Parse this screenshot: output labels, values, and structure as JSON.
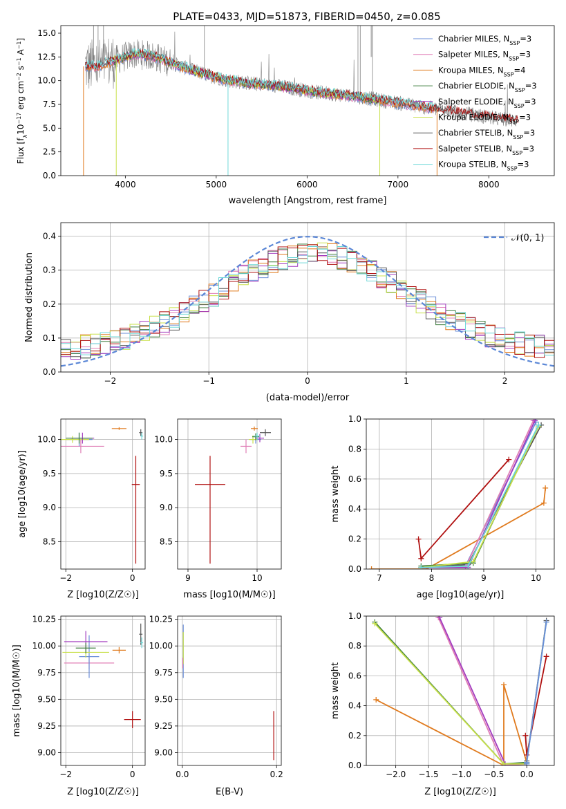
{
  "title": "PLATE=0433, MJD=51873, FIBERID=0450, z=0.085",
  "colors": {
    "Chabrier MILES": "#6a8ed8",
    "Salpeter MILES": "#e07fb6",
    "Kroupa MILES": "#e07b1f",
    "Chabrier ELODIE": "#3f7f3f",
    "Salpeter ELODIE": "#a23bbf",
    "Kroupa ELODIE": "#c8e04a",
    "Chabrier STELIB": "#555555",
    "Salpeter STELIB": "#b01010",
    "Kroupa STELIB": "#6fd8d8",
    "data": "#808080",
    "gaussian": "#5b87d6"
  },
  "chart_data": [
    {
      "type": "line",
      "panel": "spectrum",
      "title": "PLATE=0433, MJD=51873, FIBERID=0450, z=0.085",
      "xlabel": "wavelength [Angstrom, rest frame]",
      "ylabel": "Flux [f_λ 10^-17 erg cm^-2 s^-1 A^-1]",
      "xlim": [
        3290,
        8720
      ],
      "ylim": [
        0,
        15.8
      ],
      "xticks": [
        "4000",
        "5000",
        "6000",
        "7000",
        "8000"
      ],
      "yticks": [
        "0.0",
        "2.5",
        "5.0",
        "7.5",
        "10.0",
        "12.5",
        "15.0"
      ],
      "legend_position": "top-right",
      "legend": [
        {
          "name": "Chabrier MILES",
          "nssp": "3"
        },
        {
          "name": "Salpeter MILES",
          "nssp": "3"
        },
        {
          "name": "Kroupa MILES",
          "nssp": "4"
        },
        {
          "name": "Chabrier ELODIE",
          "nssp": "3"
        },
        {
          "name": "Salpeter ELODIE",
          "nssp": "3"
        },
        {
          "name": "Kroupa ELODIE",
          "nssp": "3"
        },
        {
          "name": "Chabrier STELIB",
          "nssp": "3"
        },
        {
          "name": "Salpeter STELIB",
          "nssp": "3"
        },
        {
          "name": "Kroupa STELIB",
          "nssp": "3"
        }
      ],
      "continuum": {
        "x": [
          3550,
          3700,
          3900,
          4100,
          4300,
          4500,
          4700,
          4900,
          5100,
          5300,
          5500,
          5700,
          5900,
          6100,
          6300,
          6500,
          6700,
          6900,
          7100,
          7300,
          7500,
          7700,
          7900,
          8100,
          8300
        ],
        "y": [
          11.5,
          11.5,
          12.2,
          12.8,
          12.6,
          11.9,
          11.2,
          10.6,
          10.1,
          9.8,
          9.6,
          9.4,
          9.1,
          8.8,
          8.6,
          8.4,
          8.1,
          7.8,
          7.5,
          7.2,
          6.9,
          6.6,
          6.3,
          6.0,
          5.8
        ]
      }
    },
    {
      "type": "line",
      "panel": "residual histogram",
      "xlabel": "(data-model)/error",
      "ylabel": "Normed distribution",
      "xlim": [
        -2.5,
        2.5
      ],
      "ylim": [
        0,
        0.44
      ],
      "xticks": [
        "−2",
        "−1",
        "0",
        "1",
        "2"
      ],
      "yticks": [
        "0.0",
        "0.1",
        "0.2",
        "0.3",
        "0.4"
      ],
      "legend_position": "top-right",
      "legend_label": "𝒩(0, 1)",
      "grid": true,
      "histogram_bins": [
        -2.5,
        2.5,
        0.1
      ]
    },
    {
      "type": "scatter",
      "panel": "age vs metallicity",
      "xlabel": "Z [log10(Z/Z☉)]",
      "ylabel": "age  [log10(age/yr)]",
      "xlim": [
        -2.15,
        0.38
      ],
      "ylim": [
        8.1,
        10.3
      ],
      "xticks": [
        "−2",
        "0"
      ],
      "yticks": [
        "8.5",
        "9.0",
        "9.5",
        "10.0"
      ],
      "grid": true,
      "points": [
        {
          "model": "Salpeter STELIB",
          "x": 0.1,
          "y": 9.34,
          "xerr": 0.12,
          "yerr": [
            1.16,
            0.42
          ]
        },
        {
          "model": "Kroupa MILES",
          "x": -0.4,
          "y": 10.16,
          "xerr": 0.22,
          "yerr": 0.02
        },
        {
          "model": "Salpeter MILES",
          "x": -1.55,
          "y": 9.9,
          "xerr": 0.7,
          "yerr": 0.1
        },
        {
          "model": "Chabrier MILES",
          "x": -1.6,
          "y": 10.0,
          "xerr": 0.4,
          "yerr": 0.1
        },
        {
          "model": "Kroupa ELODIE",
          "x": -1.8,
          "y": 10.0,
          "xerr": 0.5,
          "yerr": 0.05
        },
        {
          "model": "Salpeter ELODIE",
          "x": -1.5,
          "y": 10.02,
          "xerr": 0.35,
          "yerr": 0.08
        },
        {
          "model": "Chabrier ELODIE",
          "x": -1.6,
          "y": 10.02,
          "xerr": 0.4,
          "yerr": 0.08
        },
        {
          "model": "Chabrier STELIB",
          "x": 0.25,
          "y": 10.1,
          "xerr": 0.05,
          "yerr": 0.05
        },
        {
          "model": "Kroupa STELIB",
          "x": 0.28,
          "y": 10.05,
          "xerr": 0.04,
          "yerr": 0.05
        }
      ]
    },
    {
      "type": "scatter",
      "panel": "age vs mass",
      "xlabel": "mass [log10(M/M☉)]",
      "xlim": [
        8.85,
        10.35
      ],
      "ylim": [
        8.1,
        10.3
      ],
      "xticks": [
        "9",
        "10"
      ],
      "yticks": [
        "8.5",
        "9.0",
        "9.5",
        "10.0"
      ],
      "grid": true,
      "points": [
        {
          "model": "Salpeter STELIB",
          "x": 9.32,
          "y": 9.34,
          "xerr": 0.22,
          "yerr": [
            1.16,
            0.42
          ]
        },
        {
          "model": "Chabrier STELIB",
          "x": 10.12,
          "y": 10.1,
          "xerr": 0.08,
          "yerr": 0.05
        },
        {
          "model": "Kroupa MILES",
          "x": 9.96,
          "y": 10.16,
          "xerr": 0.05,
          "yerr": 0.03
        },
        {
          "model": "Salpeter MILES",
          "x": 9.84,
          "y": 9.9,
          "xerr": 0.08,
          "yerr": 0.1
        },
        {
          "model": "Chabrier MILES",
          "x": 9.98,
          "y": 10.0,
          "xerr": 0.08,
          "yerr": 0.06
        },
        {
          "model": "Kroupa ELODIE",
          "x": 9.94,
          "y": 10.0,
          "xerr": 0.06,
          "yerr": 0.06
        },
        {
          "model": "Salpeter ELODIE",
          "x": 10.04,
          "y": 10.02,
          "xerr": 0.06,
          "yerr": 0.06
        },
        {
          "model": "Chabrier ELODIE",
          "x": 9.98,
          "y": 10.04,
          "xerr": 0.05,
          "yerr": 0.05
        },
        {
          "model": "Kroupa STELIB",
          "x": 10.0,
          "y": 10.05,
          "xerr": 0.05,
          "yerr": 0.05
        }
      ]
    },
    {
      "type": "line",
      "panel": "mass weight vs age",
      "xlabel": "age  [log10(age/yr)]",
      "ylabel": "mass weight",
      "xlim": [
        6.75,
        10.35
      ],
      "ylim": [
        0,
        1.0
      ],
      "xticks": [
        "7",
        "8",
        "9",
        "10"
      ],
      "yticks": [
        "0.0",
        "0.2",
        "0.4",
        "0.6",
        "0.8",
        "1.0"
      ],
      "grid": true,
      "series": [
        {
          "model": "Kroupa MILES",
          "x": [
            6.85,
            7.9,
            10.15,
            10.18
          ],
          "y": [
            0.0,
            0.0,
            0.44,
            0.54
          ]
        },
        {
          "model": "Salpeter STELIB",
          "x": [
            7.75,
            7.8,
            9.48
          ],
          "y": [
            0.2,
            0.07,
            0.73
          ]
        },
        {
          "model": "Chabrier STELIB",
          "x": [
            7.8,
            8.7,
            10.1
          ],
          "y": [
            0.01,
            0.03,
            0.96
          ]
        },
        {
          "model": "Chabrier MILES",
          "x": [
            7.8,
            8.65,
            10.0
          ],
          "y": [
            0.01,
            0.02,
            0.98
          ]
        },
        {
          "model": "Salpeter MILES",
          "x": [
            7.8,
            8.65,
            9.95
          ],
          "y": [
            0.01,
            0.01,
            0.99
          ]
        },
        {
          "model": "Salpeter ELODIE",
          "x": [
            7.8,
            8.7,
            9.98
          ],
          "y": [
            0.01,
            0.01,
            0.99
          ]
        },
        {
          "model": "Chabrier ELODIE",
          "x": [
            7.8,
            8.8,
            10.05
          ],
          "y": [
            0.02,
            0.04,
            0.96
          ]
        },
        {
          "model": "Kroupa ELODIE",
          "x": [
            7.8,
            8.8,
            10.05
          ],
          "y": [
            0.01,
            0.05,
            0.95
          ]
        },
        {
          "model": "Kroupa STELIB",
          "x": [
            7.8,
            8.7,
            10.05
          ],
          "y": [
            0.01,
            0.02,
            0.96
          ]
        }
      ]
    },
    {
      "type": "scatter",
      "panel": "mass vs metallicity",
      "xlabel": "Z [log10(Z/Z☉)]",
      "ylabel": "mass [log10(M/M☉)]",
      "xlim": [
        -2.15,
        0.38
      ],
      "ylim": [
        8.88,
        10.28
      ],
      "xticks": [
        "−2",
        "0"
      ],
      "yticks": [
        "9.00",
        "9.25",
        "9.50",
        "9.75",
        "10.00",
        "10.25"
      ],
      "grid": true,
      "points": [
        {
          "model": "Salpeter STELIB",
          "x": 0.0,
          "y": 9.31,
          "xerr": 0.25,
          "yerr": 0.08
        },
        {
          "model": "Kroupa MILES",
          "x": -0.4,
          "y": 9.96,
          "xerr": 0.2,
          "yerr": 0.03
        },
        {
          "model": "Salpeter MILES",
          "x": -1.3,
          "y": 9.84,
          "xerr": 0.75,
          "yerr": 0.06
        },
        {
          "model": "Chabrier MILES",
          "x": -1.3,
          "y": 9.9,
          "xerr": 0.3,
          "yerr": 0.2
        },
        {
          "model": "Kroupa ELODIE",
          "x": -1.4,
          "y": 9.94,
          "xerr": 0.7,
          "yerr": 0.05
        },
        {
          "model": "Salpeter ELODIE",
          "x": -1.4,
          "y": 10.04,
          "xerr": 0.65,
          "yerr": 0.1
        },
        {
          "model": "Chabrier ELODIE",
          "x": -1.4,
          "y": 9.98,
          "xerr": 0.3,
          "yerr": 0.05
        },
        {
          "model": "Chabrier STELIB",
          "x": 0.25,
          "y": 10.11,
          "xerr": 0.05,
          "yerr": 0.1
        },
        {
          "model": "Kroupa STELIB",
          "x": 0.28,
          "y": 10.03,
          "xerr": 0.04,
          "yerr": 0.05
        }
      ]
    },
    {
      "type": "scatter",
      "panel": "mass vs extinction",
      "xlabel": "E(B-V)",
      "xlim": [
        -0.01,
        0.21
      ],
      "ylim": [
        8.88,
        10.28
      ],
      "xticks": [
        "0.0",
        "0.2"
      ],
      "yticks": [
        "9.00",
        "9.25",
        "9.50",
        "9.75",
        "10.00",
        "10.25"
      ],
      "grid": true,
      "points": [
        {
          "model": "Salpeter STELIB",
          "x": 0.194,
          "y": 9.16,
          "yerr": 0.23
        },
        {
          "model": "Chabrier MILES",
          "x": 0.002,
          "y": 9.95,
          "yerr": 0.25
        },
        {
          "model": "Kroupa ELODIE",
          "x": 0.002,
          "y": 9.98,
          "yerr": 0.15
        },
        {
          "model": "Salpeter MILES",
          "x": 0.001,
          "y": 9.84,
          "yerr": 0.05
        }
      ]
    },
    {
      "type": "line",
      "panel": "mass weight vs metallicity",
      "xlabel": "Z [log10(Z/Z☉)]",
      "ylabel": "mass weight",
      "xlim": [
        -2.45,
        0.42
      ],
      "ylim": [
        0,
        1.0
      ],
      "xticks": [
        "−2.0",
        "−1.5",
        "−1.0",
        "−0.5",
        "0.0"
      ],
      "yticks": [
        "0.0",
        "0.2",
        "0.4",
        "0.6",
        "0.8",
        "1.0"
      ],
      "grid": true,
      "series": [
        {
          "model": "Kroupa MILES",
          "x": [
            -2.3,
            -0.35,
            -0.35,
            0.0
          ],
          "y": [
            0.44,
            0.0,
            0.54,
            0.02
          ]
        },
        {
          "model": "Salpeter MILES",
          "x": [
            -1.35,
            -0.35,
            0.0
          ],
          "y": [
            0.99,
            0.0,
            0.01
          ]
        },
        {
          "model": "Salpeter ELODIE",
          "x": [
            -1.33,
            -0.33,
            0.0
          ],
          "y": [
            0.99,
            0.01,
            0.01
          ]
        },
        {
          "model": "Chabrier ELODIE",
          "x": [
            -2.32,
            -0.35,
            0.0
          ],
          "y": [
            0.96,
            0.01,
            0.02
          ]
        },
        {
          "model": "Kroupa ELODIE",
          "x": [
            -2.32,
            -0.35,
            0.0
          ],
          "y": [
            0.95,
            0.01,
            0.01
          ]
        },
        {
          "model": "Salpeter STELIB",
          "x": [
            -0.02,
            0.0,
            0.3
          ],
          "y": [
            0.2,
            0.07,
            0.73
          ]
        },
        {
          "model": "Chabrier STELIB",
          "x": [
            0.0,
            0.0,
            0.3
          ],
          "y": [
            0.01,
            0.03,
            0.97
          ]
        },
        {
          "model": "Kroupa STELIB",
          "x": [
            0.0,
            0.0,
            0.3
          ],
          "y": [
            0.01,
            0.02,
            0.96
          ]
        },
        {
          "model": "Chabrier MILES",
          "x": [
            0.0,
            0.0,
            0.3
          ],
          "y": [
            0.01,
            0.02,
            0.96
          ]
        }
      ]
    }
  ]
}
